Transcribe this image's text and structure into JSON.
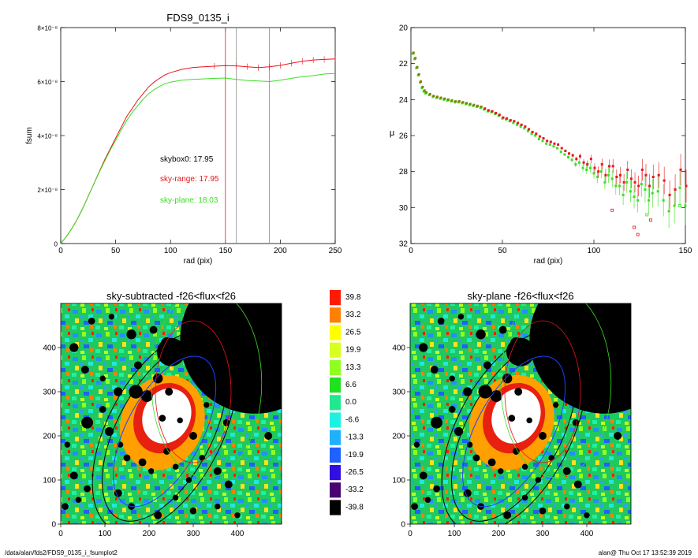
{
  "colors": {
    "red": "#e8141c",
    "green": "#39e020",
    "olive": "#808000",
    "black": "#000000",
    "gray": "#888888"
  },
  "footer": {
    "path": "/data/alan/fds2/FDS9_0135_i_fsumplot2",
    "stamp": "alan@  Thu Oct 17 13:52:39 2019"
  },
  "chart_data": [
    {
      "id": "growth",
      "type": "line",
      "title": "FDS9_0135_i",
      "xlabel": "rad (pix)",
      "ylabel": "fsum",
      "xlim": [
        0,
        250
      ],
      "ylim": [
        0,
        8e-08
      ],
      "xticks": [
        "0",
        "50",
        "100",
        "150",
        "200",
        "250"
      ],
      "xtick_values": [
        0,
        50,
        100,
        150,
        200,
        250
      ],
      "yticks": [
        "0",
        "2×10⁻⁸",
        "4×10⁻⁸",
        "6×10⁻⁸",
        "8×10⁻⁸"
      ],
      "ytick_values": [
        0,
        2e-08,
        4e-08,
        6e-08,
        8e-08
      ],
      "vlines": [
        {
          "x": 150,
          "color": "#e8141c"
        },
        {
          "x": 160,
          "color": "#888888"
        },
        {
          "x": 190,
          "color": "#888888"
        }
      ],
      "annotations": [
        {
          "text": "skybox0: 17.95",
          "color": "#000000"
        },
        {
          "text": "sky-range: 17.95",
          "color": "#e8141c"
        },
        {
          "text": "sky-plane: 18.03",
          "color": "#39e020"
        }
      ],
      "series": [
        {
          "color": "#e8141c",
          "x": [
            0,
            5,
            10,
            15,
            20,
            25,
            30,
            35,
            40,
            45,
            50,
            55,
            60,
            65,
            70,
            75,
            80,
            85,
            90,
            95,
            100,
            110,
            120,
            130,
            140,
            150,
            160,
            170,
            180,
            190,
            200,
            210,
            220,
            230,
            240,
            250
          ],
          "y": [
            0,
            2.5e-09,
            5.5e-09,
            9e-09,
            1.3e-08,
            1.75e-08,
            2.2e-08,
            2.65e-08,
            3.1e-08,
            3.5e-08,
            3.9e-08,
            4.3e-08,
            4.7e-08,
            5e-08,
            5.3e-08,
            5.55e-08,
            5.8e-08,
            5.98e-08,
            6.12e-08,
            6.25e-08,
            6.33e-08,
            6.45e-08,
            6.52e-08,
            6.55e-08,
            6.57e-08,
            6.59e-08,
            6.58e-08,
            6.55e-08,
            6.52e-08,
            6.55e-08,
            6.6e-08,
            6.68e-08,
            6.75e-08,
            6.8e-08,
            6.82e-08,
            6.84e-08
          ]
        },
        {
          "color": "#39e020",
          "x": [
            0,
            5,
            10,
            15,
            20,
            25,
            30,
            35,
            40,
            45,
            50,
            55,
            60,
            65,
            70,
            75,
            80,
            85,
            90,
            95,
            100,
            110,
            120,
            130,
            140,
            150,
            160,
            170,
            180,
            190,
            200,
            210,
            220,
            230,
            240,
            250
          ],
          "y": [
            0,
            2.5e-09,
            5.5e-09,
            9e-09,
            1.3e-08,
            1.75e-08,
            2.2e-08,
            2.63e-08,
            3.05e-08,
            3.45e-08,
            3.82e-08,
            4.2e-08,
            4.55e-08,
            4.85e-08,
            5.1e-08,
            5.35e-08,
            5.55e-08,
            5.7e-08,
            5.82e-08,
            5.92e-08,
            5.98e-08,
            6.05e-08,
            6.08e-08,
            6.1e-08,
            6.12e-08,
            6.13e-08,
            6.08e-08,
            6.04e-08,
            6.02e-08,
            6e-08,
            6.05e-08,
            6.12e-08,
            6.18e-08,
            6.22e-08,
            6.28e-08,
            6.3e-08
          ]
        }
      ]
    },
    {
      "id": "profile",
      "type": "scatter",
      "xlabel": "rad (pix)",
      "ylabel": "μ",
      "xlim": [
        0,
        150
      ],
      "ylim": [
        20,
        32
      ],
      "y_inverted": true,
      "xticks": [
        "0",
        "50",
        "100",
        "150"
      ],
      "xtick_values": [
        0,
        50,
        100,
        150
      ],
      "yticks": [
        "20",
        "22",
        "24",
        "26",
        "28",
        "30",
        "32"
      ],
      "ytick_values": [
        20,
        22,
        24,
        26,
        28,
        30,
        32
      ],
      "series": [
        {
          "color": "#e8141c",
          "x": [
            1,
            2,
            3,
            4,
            5,
            6,
            7,
            8,
            10,
            12,
            14,
            16,
            18,
            20,
            22,
            24,
            26,
            28,
            30,
            32,
            34,
            36,
            38,
            40,
            42,
            44,
            46,
            48,
            50,
            52,
            54,
            56,
            58,
            60,
            62,
            64,
            66,
            68,
            70,
            72,
            74,
            76,
            78,
            80,
            82,
            84,
            86,
            88,
            90,
            92,
            94,
            96,
            98,
            100,
            102,
            104,
            106,
            108,
            110,
            112,
            114,
            116,
            118,
            120,
            122,
            124,
            126,
            128,
            130,
            132,
            135,
            138,
            141,
            144,
            147,
            150
          ],
          "y": [
            21.4,
            21.7,
            22.2,
            22.6,
            23.0,
            23.3,
            23.5,
            23.6,
            23.7,
            23.8,
            23.85,
            23.9,
            23.95,
            24.0,
            24.05,
            24.1,
            24.1,
            24.15,
            24.2,
            24.25,
            24.3,
            24.35,
            24.4,
            24.5,
            24.6,
            24.65,
            24.75,
            24.85,
            25.0,
            25.05,
            25.15,
            25.2,
            25.3,
            25.4,
            25.5,
            25.65,
            25.8,
            25.9,
            26.05,
            26.15,
            26.3,
            26.35,
            26.45,
            26.5,
            26.7,
            26.85,
            27.0,
            27.1,
            27.3,
            27.15,
            27.5,
            27.6,
            27.3,
            27.8,
            28.0,
            27.6,
            28.2,
            27.7,
            27.7,
            28.3,
            28.2,
            28.6,
            27.9,
            28.4,
            28.6,
            28.8,
            27.9,
            28.2,
            28.8,
            28.3,
            28.2,
            28.5,
            29.3,
            29.0,
            27.9,
            28.8
          ]
        },
        {
          "color": "#39e020",
          "x": [
            1,
            2,
            3,
            4,
            5,
            6,
            7,
            8,
            10,
            12,
            14,
            16,
            18,
            20,
            22,
            24,
            26,
            28,
            30,
            32,
            34,
            36,
            38,
            40,
            42,
            44,
            46,
            48,
            50,
            52,
            54,
            56,
            58,
            60,
            62,
            64,
            66,
            68,
            70,
            72,
            74,
            76,
            78,
            80,
            82,
            84,
            86,
            88,
            90,
            92,
            94,
            96,
            98,
            100,
            102,
            104,
            106,
            108,
            110,
            112,
            114,
            116,
            118,
            120,
            122,
            124,
            126,
            128,
            130,
            132,
            135,
            138,
            141,
            144,
            147,
            150
          ],
          "y": [
            21.45,
            21.75,
            22.25,
            22.65,
            23.05,
            23.35,
            23.55,
            23.65,
            23.75,
            23.85,
            23.9,
            23.95,
            24.0,
            24.05,
            24.1,
            24.15,
            24.15,
            24.2,
            24.25,
            24.3,
            24.35,
            24.4,
            24.45,
            24.55,
            24.65,
            24.7,
            24.8,
            24.9,
            25.05,
            25.1,
            25.2,
            25.3,
            25.4,
            25.5,
            25.6,
            25.75,
            25.9,
            26.0,
            26.2,
            26.3,
            26.45,
            26.5,
            26.6,
            26.7,
            26.9,
            27.05,
            27.2,
            27.35,
            27.6,
            27.5,
            27.8,
            27.9,
            27.8,
            28.1,
            28.3,
            28.0,
            28.6,
            28.2,
            28.4,
            28.8,
            28.8,
            29.3,
            28.6,
            29.1,
            29.4,
            29.6,
            28.7,
            29.0,
            29.6,
            29.2,
            29.1,
            29.6,
            30.2,
            29.9,
            28.9,
            29.9
          ]
        }
      ],
      "outliers_red": [
        [
          110,
          30.15
        ],
        [
          124,
          31.5
        ],
        [
          122,
          31.1
        ],
        [
          131,
          30.7
        ]
      ],
      "outliers_green": [
        [
          129,
          30.4
        ],
        [
          147,
          29.9
        ]
      ]
    },
    {
      "id": "map-left",
      "type": "heatmap",
      "title": "sky-subtracted -f26<flux<f26",
      "xlim": [
        0,
        500
      ],
      "ylim": [
        0,
        500
      ],
      "xticks": [
        "0",
        "100",
        "200",
        "300",
        "400"
      ],
      "xtick_values": [
        0,
        100,
        200,
        300,
        400
      ],
      "yticks": [
        "0",
        "100",
        "200",
        "300",
        "400"
      ],
      "ytick_values": [
        0,
        100,
        200,
        300,
        400
      ]
    },
    {
      "id": "colorbar",
      "type": "table",
      "labels": [
        "39.8",
        "33.2",
        "26.5",
        "19.9",
        "13.3",
        "6.6",
        "0.0",
        "-6.6",
        "-13.3",
        "-19.9",
        "-26.5",
        "-33.2",
        "-39.8"
      ],
      "colors": [
        "#ff1a00",
        "#ff8000",
        "#ffff00",
        "#d8ff20",
        "#90ff20",
        "#20e020",
        "#20e890",
        "#20f0e0",
        "#20b0ff",
        "#2060ff",
        "#3010e0",
        "#4a0070",
        "#000000"
      ]
    },
    {
      "id": "map-right",
      "type": "heatmap",
      "title": "sky-plane -f26<flux<f26",
      "xlim": [
        0,
        500
      ],
      "ylim": [
        0,
        500
      ],
      "xticks": [
        "0",
        "100",
        "200",
        "300",
        "400"
      ],
      "xtick_values": [
        0,
        100,
        200,
        300,
        400
      ],
      "yticks": [
        "0",
        "100",
        "200",
        "300",
        "400"
      ],
      "ytick_values": [
        0,
        100,
        200,
        300,
        400
      ]
    }
  ]
}
